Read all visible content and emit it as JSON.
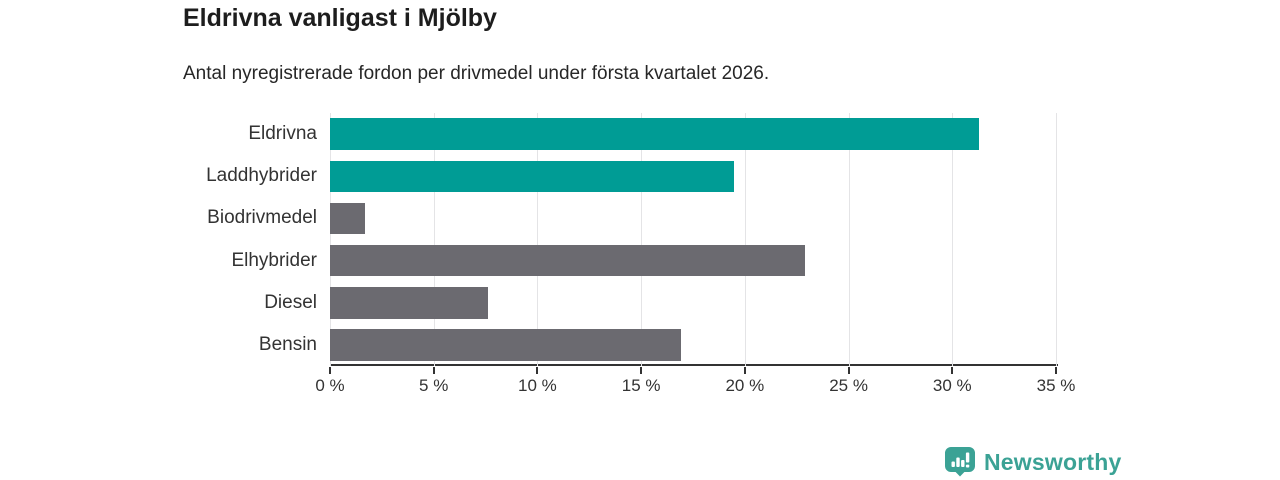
{
  "header": {
    "title": "Eldrivna vanligast i Mjölby",
    "subtitle": "Antal nyregistrerade fordon per drivmedel under första kvartalet 2026."
  },
  "chart_data": {
    "type": "bar",
    "orientation": "horizontal",
    "title": "Eldrivna vanligast i Mjölby",
    "subtitle": "Antal nyregistrerade fordon per drivmedel under första kvartalet 2026.",
    "categories": [
      "Eldrivna",
      "Laddhybrider",
      "Biodrivmedel",
      "Elhybrider",
      "Diesel",
      "Bensin"
    ],
    "values": [
      31.3,
      19.5,
      1.7,
      22.9,
      7.6,
      16.9
    ],
    "unit": "%",
    "bar_colors": [
      "#009c95",
      "#009c95",
      "#6b6a70",
      "#6b6a70",
      "#6b6a70",
      "#6b6a70"
    ],
    "highlight_color": "#009c95",
    "default_color": "#6b6a70",
    "xlim": [
      0,
      35
    ],
    "xticks": [
      0,
      5,
      10,
      15,
      20,
      25,
      30,
      35
    ],
    "xtick_labels": [
      "0 %",
      "5 %",
      "10 %",
      "15 %",
      "20 %",
      "25 %",
      "30 %",
      "35 %"
    ],
    "xlabel": "",
    "ylabel": "",
    "grid": true,
    "legend": false
  },
  "footer": {
    "brand": "Newsworthy",
    "brand_color": "#3ba295",
    "icon": "bar-chart-pin-icon"
  }
}
